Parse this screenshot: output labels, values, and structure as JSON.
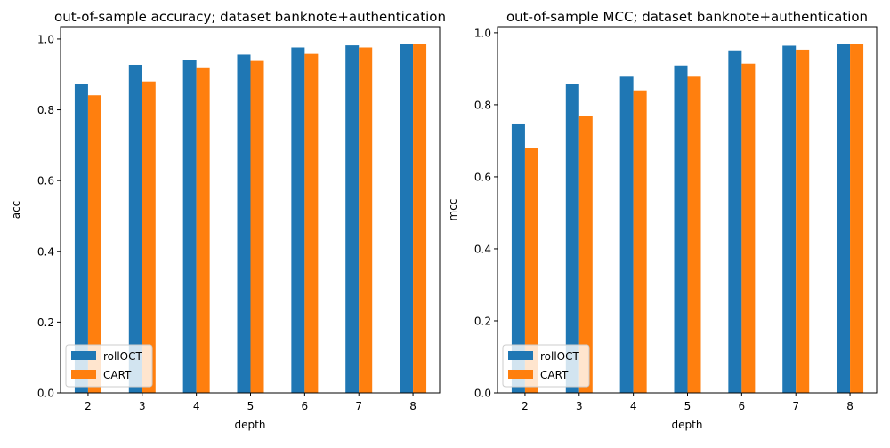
{
  "colors": {
    "series0": "#1f77b4",
    "series1": "#ff7f0e"
  },
  "chart_data": [
    {
      "type": "bar",
      "title": "out-of-sample accuracy; dataset banknote+authentication",
      "xlabel": "depth",
      "ylabel": "acc",
      "categories": [
        "2",
        "3",
        "4",
        "5",
        "6",
        "7",
        "8"
      ],
      "series": [
        {
          "name": "rollOCT",
          "values": [
            0.873,
            0.927,
            0.942,
            0.956,
            0.976,
            0.982,
            0.985
          ]
        },
        {
          "name": "CART",
          "values": [
            0.841,
            0.88,
            0.92,
            0.938,
            0.958,
            0.976,
            0.985
          ]
        }
      ],
      "ylim": [
        0,
        1.035
      ],
      "yticks": [
        "0.0",
        "0.2",
        "0.4",
        "0.6",
        "0.8",
        "1.0"
      ],
      "grid": false,
      "legend_position": "lower-left"
    },
    {
      "type": "bar",
      "title": "out-of-sample MCC; dataset banknote+authentication",
      "xlabel": "depth",
      "ylabel": "mcc",
      "categories": [
        "2",
        "3",
        "4",
        "5",
        "6",
        "7",
        "8"
      ],
      "series": [
        {
          "name": "rollOCT",
          "values": [
            0.748,
            0.857,
            0.878,
            0.909,
            0.951,
            0.964,
            0.969
          ]
        },
        {
          "name": "CART",
          "values": [
            0.681,
            0.769,
            0.84,
            0.878,
            0.914,
            0.953,
            0.969
          ]
        }
      ],
      "ylim": [
        0,
        1.017
      ],
      "yticks": [
        "0.0",
        "0.2",
        "0.4",
        "0.6",
        "0.8",
        "1.0"
      ],
      "grid": false,
      "legend_position": "lower-left"
    }
  ]
}
